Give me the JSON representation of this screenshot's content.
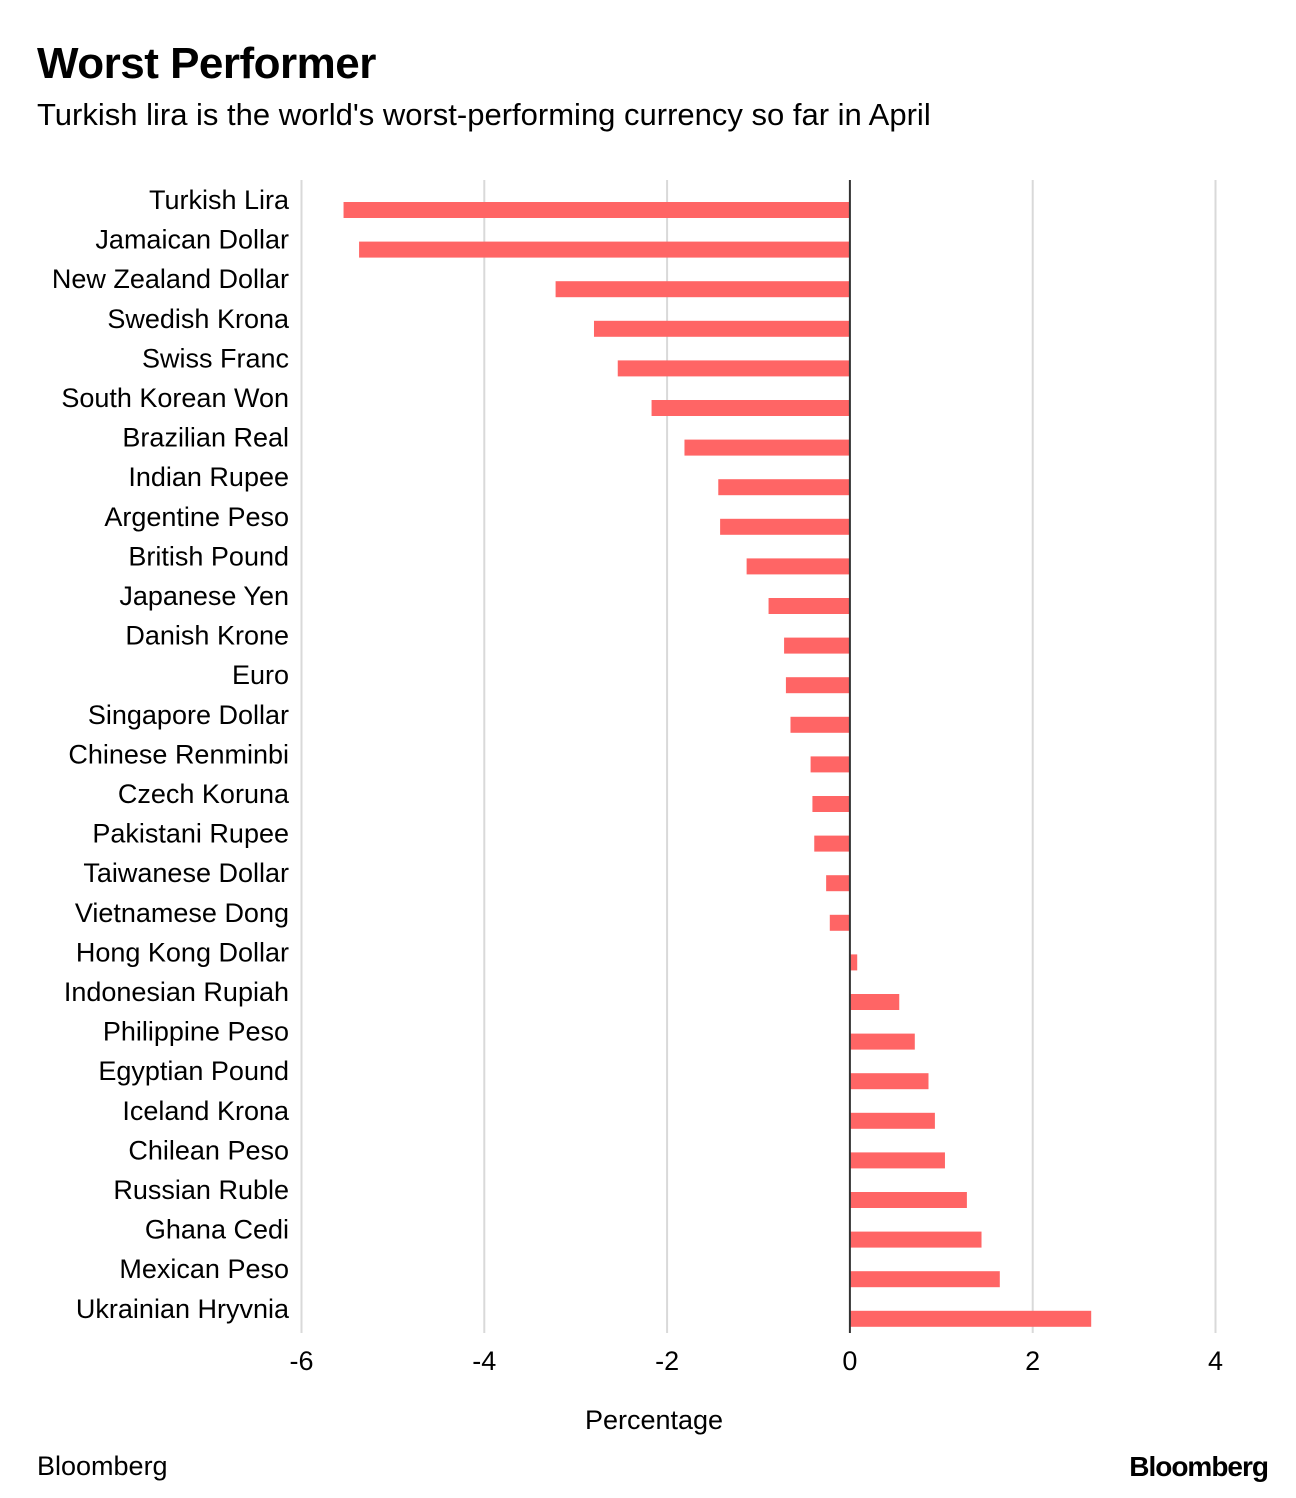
{
  "header": {
    "title": "Worst Performer",
    "subtitle": "Turkish lira is the world's worst-performing currency so far in April"
  },
  "footer": {
    "source": "Bloomberg",
    "logo": "Bloomberg"
  },
  "colors": {
    "bar": "#ff6565",
    "gridline": "#d9d9d9",
    "zero_line": "#333333",
    "text": "#000000"
  },
  "chart_data": {
    "type": "bar",
    "orientation": "horizontal",
    "title": "Worst Performer",
    "subtitle": "Turkish lira is the world's worst-performing currency so far in April",
    "xlabel": "Percentage",
    "ylabel": "",
    "xlim": [
      -6,
      4
    ],
    "xticks": [
      -6,
      -4,
      -2,
      0,
      2,
      4
    ],
    "grid": true,
    "legend": "none",
    "categories": [
      "Turkish Lira",
      "Jamaican Dollar",
      "New Zealand Dollar",
      "Swedish Krona",
      "Swiss Franc",
      "South Korean Won",
      "Brazilian Real",
      "Indian Rupee",
      "Argentine Peso",
      "British Pound",
      "Japanese Yen",
      "Danish Krone",
      "Euro",
      "Singapore Dollar",
      "Chinese Renminbi",
      "Czech Koruna",
      "Pakistani Rupee",
      "Taiwanese Dollar",
      "Vietnamese Dong",
      "Hong Kong Dollar",
      "Indonesian Rupiah",
      "Philippine Peso",
      "Egyptian Pound",
      "Iceland Krona",
      "Chilean Peso",
      "Russian Ruble",
      "Ghana Cedi",
      "Mexican Peso",
      "Ukrainian Hryvnia"
    ],
    "values": [
      -5.54,
      -5.37,
      -3.22,
      -2.8,
      -2.54,
      -2.17,
      -1.81,
      -1.44,
      -1.42,
      -1.13,
      -0.89,
      -0.72,
      -0.7,
      -0.65,
      -0.43,
      -0.41,
      -0.39,
      -0.26,
      -0.22,
      0.08,
      0.54,
      0.71,
      0.86,
      0.93,
      1.04,
      1.28,
      1.44,
      1.64,
      2.64
    ]
  }
}
